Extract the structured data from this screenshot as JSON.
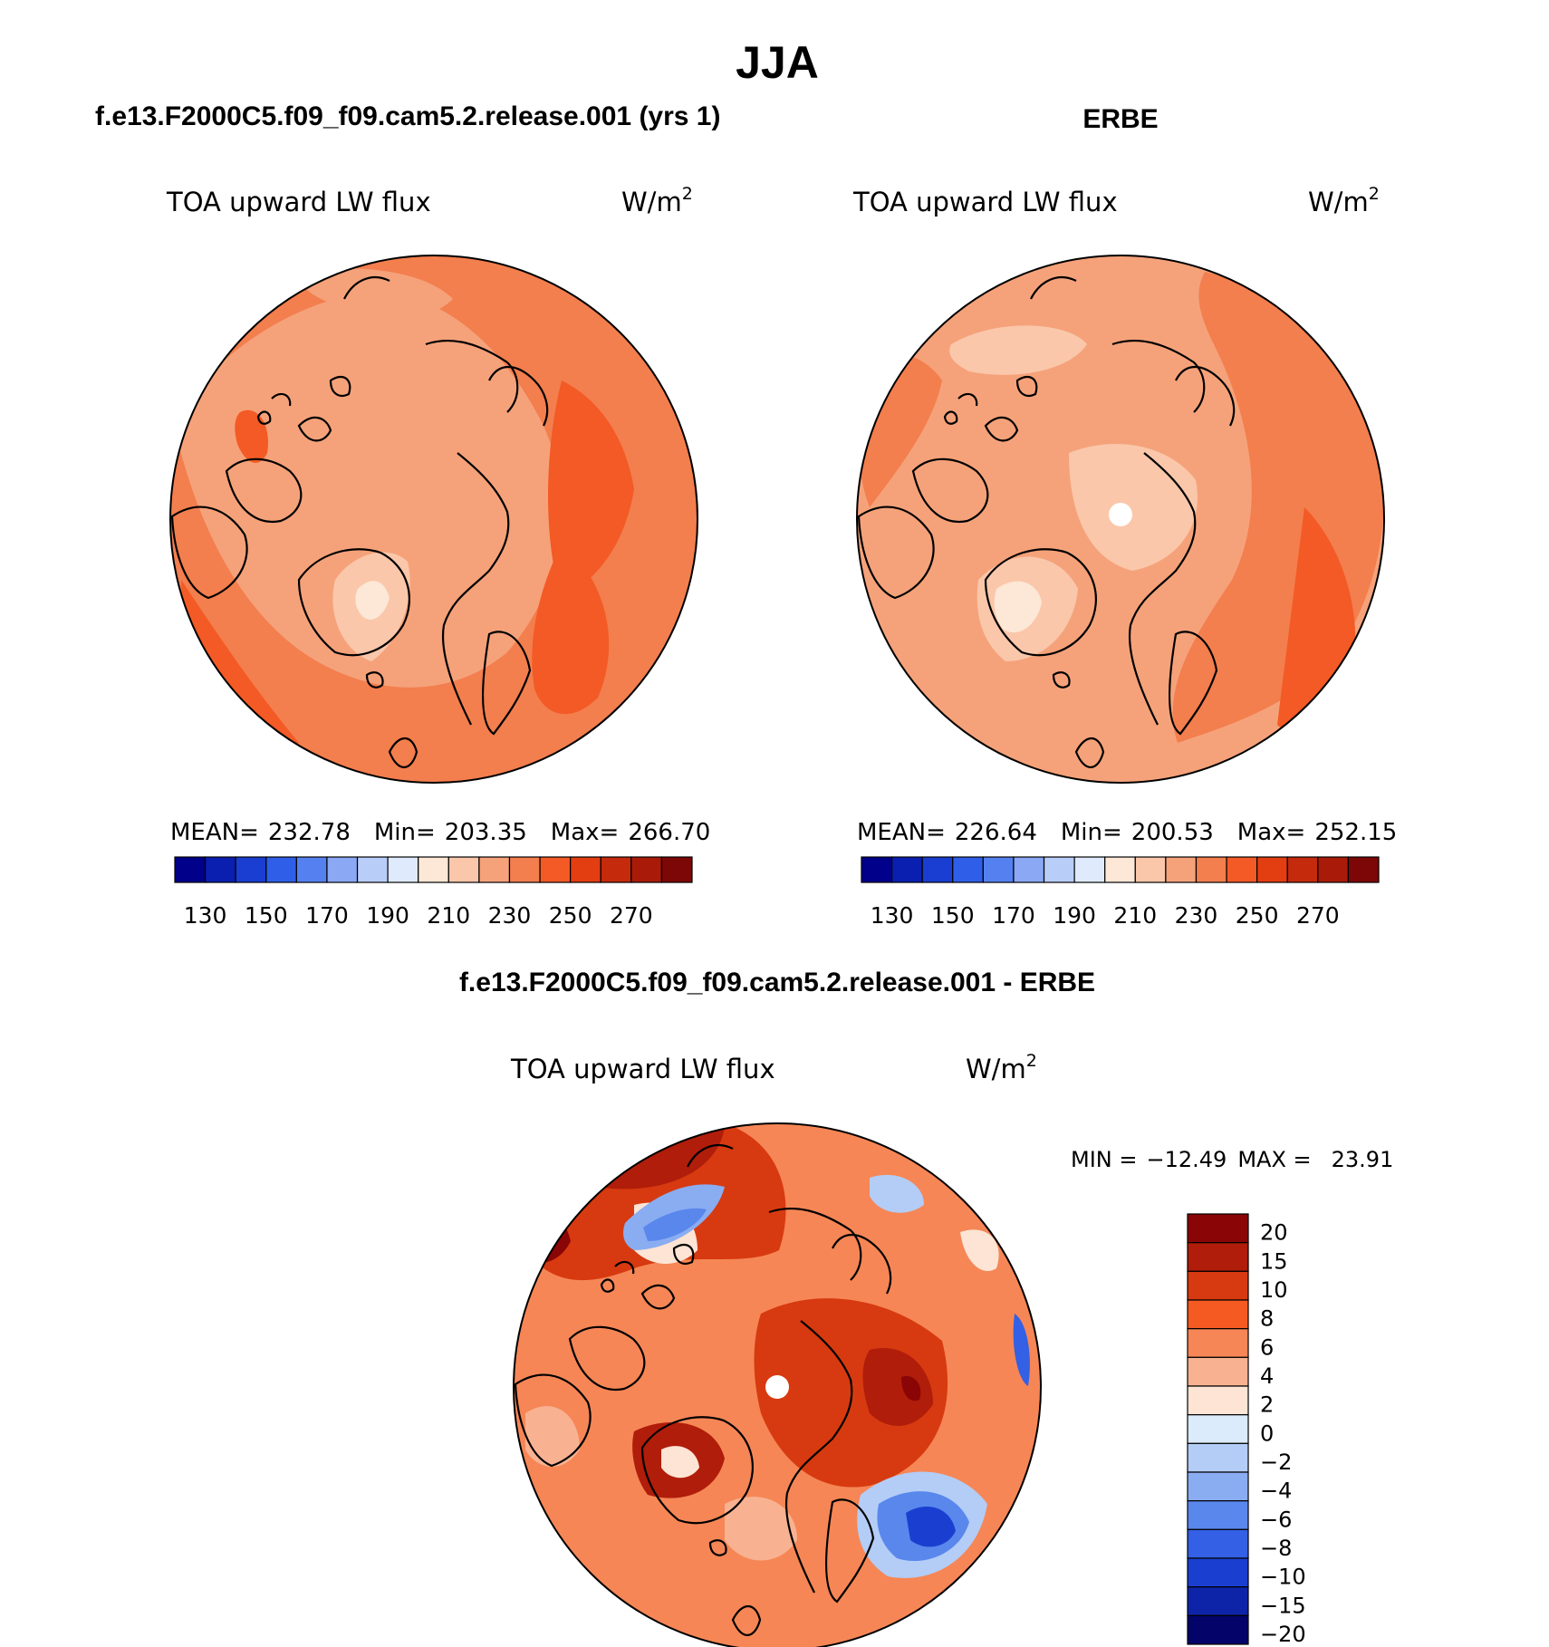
{
  "figure_title": "JJA",
  "chart_data": [
    {
      "type": "contour-map",
      "projection": "north polar stereographic",
      "panel_title": "f.e13.F2000C5.f09_f09.cam5.2.release.001 (yrs 1)",
      "variable": "TOA upward LW flux",
      "units": "W/m",
      "units_exp": "2",
      "stats": {
        "mean_label": "MEAN=",
        "mean": "232.78",
        "min_label": "Min=",
        "min": "203.35",
        "max_label": "Max=",
        "max": "266.70"
      },
      "colorbar_ticks": [
        "130",
        "150",
        "170",
        "190",
        "210",
        "230",
        "250",
        "270"
      ],
      "colorbar_colors": [
        "#00008a",
        "#0a1fb0",
        "#1a3ed1",
        "#2f5fe8",
        "#5581f0",
        "#8aa8f4",
        "#b9cdf9",
        "#dfeafc",
        "#fde7d6",
        "#fac7aa",
        "#f5a27a",
        "#f37e4e",
        "#f35a25",
        "#e33e12",
        "#c52a0c",
        "#a91b08",
        "#7d0606"
      ]
    },
    {
      "type": "contour-map",
      "projection": "north polar stereographic",
      "panel_title": "ERBE",
      "variable": "TOA upward LW flux",
      "units": "W/m",
      "units_exp": "2",
      "stats": {
        "mean_label": "MEAN=",
        "mean": "226.64",
        "min_label": "Min=",
        "min": "200.53",
        "max_label": "Max=",
        "max": "252.15"
      },
      "colorbar_ticks": [
        "130",
        "150",
        "170",
        "190",
        "210",
        "230",
        "250",
        "270"
      ],
      "colorbar_colors": [
        "#00008a",
        "#0a1fb0",
        "#1a3ed1",
        "#2f5fe8",
        "#5581f0",
        "#8aa8f4",
        "#b9cdf9",
        "#dfeafc",
        "#fde7d6",
        "#fac7aa",
        "#f5a27a",
        "#f37e4e",
        "#f35a25",
        "#e33e12",
        "#c52a0c",
        "#a91b08",
        "#7d0606"
      ]
    },
    {
      "type": "contour-map",
      "projection": "north polar stereographic",
      "panel_title": "f.e13.F2000C5.f09_f09.cam5.2.release.001 - ERBE",
      "variable": "TOA upward LW flux",
      "units": "W/m",
      "units_exp": "2",
      "stats": {
        "min_label": "MIN =",
        "min": "−12.49",
        "max_label": "MAX =",
        "max": "23.91"
      },
      "colorbar_ticks": [
        "20",
        "15",
        "10",
        "8",
        "6",
        "4",
        "2",
        "0",
        "−2",
        "−4",
        "−6",
        "−8",
        "−10",
        "−15",
        "−20"
      ],
      "colorbar_colors": [
        "#8a0505",
        "#b01d0a",
        "#d73a10",
        "#f45a22",
        "#f68656",
        "#f8b291",
        "#fde4d4",
        "#dcebfb",
        "#b3cdf6",
        "#8aadf2",
        "#5a87ec",
        "#3360e4",
        "#1a3fd0",
        "#0e24a8",
        "#03036a"
      ]
    }
  ]
}
